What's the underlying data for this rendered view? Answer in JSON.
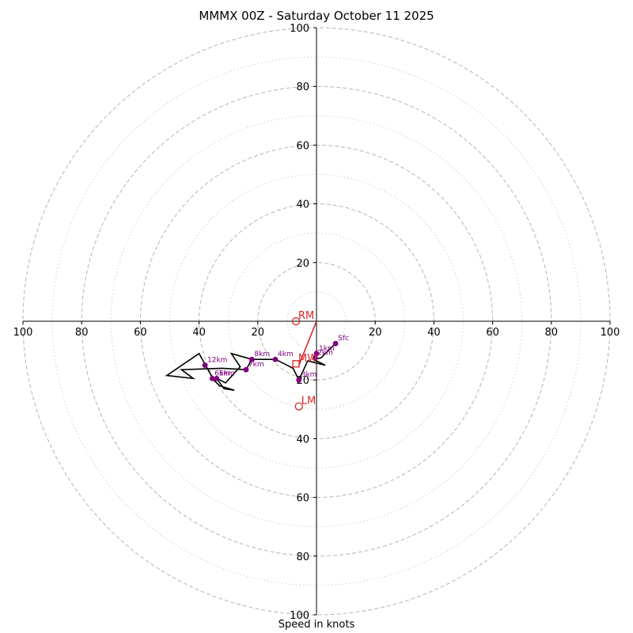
{
  "chart_data": {
    "type": "hodograph",
    "title": "MMMX 00Z - Saturday October 11 2025",
    "xlabel": "Speed in knots",
    "axis_range": [
      -100,
      100
    ],
    "ring_major": [
      20,
      40,
      60,
      80,
      100
    ],
    "ring_minor": [
      10,
      30,
      50,
      70,
      90
    ],
    "tick_labels": [
      "100",
      "80",
      "60",
      "40",
      "20",
      "20",
      "40",
      "60",
      "80",
      "100"
    ],
    "y_tick_labels": [
      "100",
      "80",
      "60",
      "40",
      "20",
      "20",
      "40",
      "60",
      "80",
      "100"
    ],
    "trace_color": "#000000",
    "height_color": "#800080",
    "storm_color": "#d62728",
    "ring_color": "#bbbbbb",
    "hodograph_trace": [
      [
        6.5,
        -7.6
      ],
      [
        4.0,
        -10.0
      ],
      [
        1.5,
        -12.5
      ],
      [
        -1.0,
        -13.0
      ],
      [
        3.0,
        -15.0
      ],
      [
        -3.0,
        -13.5
      ],
      [
        -6.0,
        -20.0
      ],
      [
        -8.0,
        -16.0
      ],
      [
        -10.0,
        -15.0
      ],
      [
        -14.0,
        -13.0
      ],
      [
        -17.0,
        -13.0
      ],
      [
        -22.0,
        -13.0
      ],
      [
        -29.0,
        -11.0
      ],
      [
        -26.0,
        -15.5
      ],
      [
        -31.0,
        -21.0
      ],
      [
        -34.0,
        -19.5
      ],
      [
        -31.5,
        -23.0
      ],
      [
        -28.0,
        -23.5
      ],
      [
        -33.0,
        -22.0
      ],
      [
        -35.0,
        -20.0
      ],
      [
        -40.0,
        -11.0
      ],
      [
        -51.0,
        -18.5
      ],
      [
        -42.0,
        -19.5
      ],
      [
        -46.0,
        -16.5
      ],
      [
        -32.0,
        -16.0
      ],
      [
        -24.0,
        -16.5
      ],
      [
        -22.0,
        -13.0
      ]
    ],
    "height_labels": [
      {
        "label": "Sfc",
        "u": 6.5,
        "v": -7.6
      },
      {
        "label": "1km",
        "u": 0,
        "v": -11.0
      },
      {
        "label": "2km",
        "u": -0.5,
        "v": -12.5
      },
      {
        "label": "3km",
        "u": -6.0,
        "v": -20.0
      },
      {
        "label": "4km",
        "u": -14.0,
        "v": -13.0
      },
      {
        "label": "5km",
        "u": -34.0,
        "v": -19.5
      },
      {
        "label": "6km",
        "u": -35.5,
        "v": -19.5
      },
      {
        "label": "7km",
        "u": -24.0,
        "v": -16.5
      },
      {
        "label": "8km",
        "u": -22.0,
        "v": -13.0
      },
      {
        "label": "12km",
        "u": -38.0,
        "v": -15.0
      }
    ],
    "storm_motion": {
      "RM": {
        "label": "RM",
        "u": -7.0,
        "v": 0.0
      },
      "LM": {
        "label": "LM",
        "u": -6.0,
        "v": -29.0
      },
      "MW": {
        "label": "MW",
        "u": -7.0,
        "v": -14.5
      }
    },
    "shear_vector": {
      "u_start": 0.0,
      "v_start": 0.0,
      "u_end": -6.0,
      "v_end": -15.0
    }
  }
}
